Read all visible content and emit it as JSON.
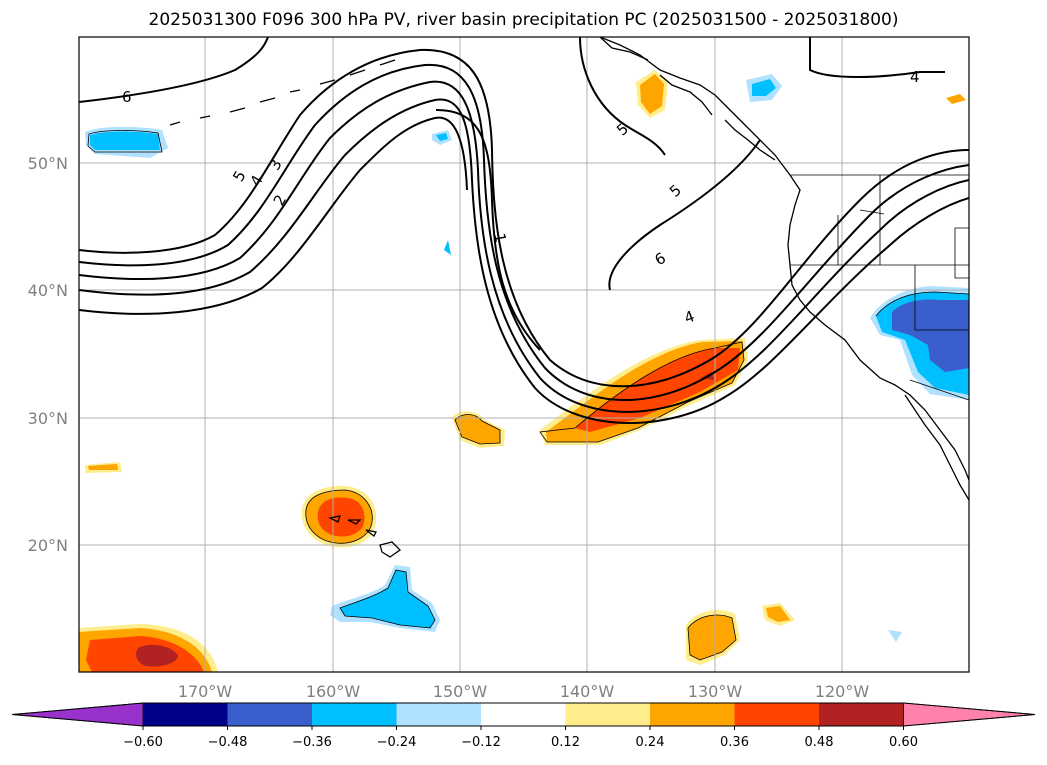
{
  "title": "2025031300 F096 300 hPa PV, river basin precipitation PC (2025031500 - 2025031800)",
  "latitude_labels": [
    "50°N",
    "40°N",
    "30°N",
    "20°N"
  ],
  "longitude_labels": [
    "170°W",
    "160°W",
    "150°W",
    "140°W",
    "130°W",
    "120°W"
  ],
  "colorbar": {
    "tick_labels": [
      "−0.60",
      "−0.48",
      "−0.36",
      "−0.24",
      "−0.12",
      "0.12",
      "0.24",
      "0.36",
      "0.48",
      "0.60"
    ],
    "colors": [
      "#9932cc",
      "#00008b",
      "#3a5fcd",
      "#00bfff",
      "#b0e2ff",
      "#ffffff",
      "#ffec8b",
      "#ffa500",
      "#ff4500",
      "#b22222",
      "#ff82ab"
    ]
  },
  "contour_labels": [
    "6",
    "5",
    "4",
    "3",
    "2",
    "1",
    "5",
    "6",
    "5",
    "4",
    "4"
  ],
  "colors": {
    "coast": "#000000",
    "grid": "#b0b0b0",
    "contour": "#000000"
  }
}
